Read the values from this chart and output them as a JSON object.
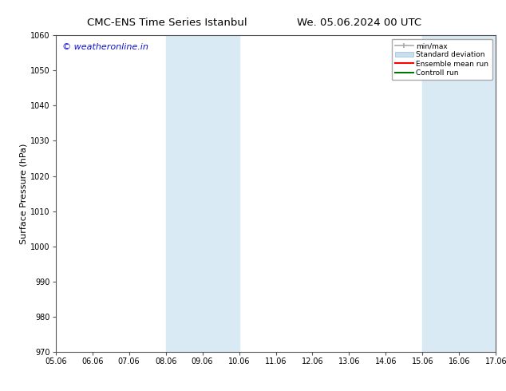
{
  "title_left": "CMC-ENS Time Series Istanbul",
  "title_right": "We. 05.06.2024 00 UTC",
  "ylabel": "Surface Pressure (hPa)",
  "ylim": [
    970,
    1060
  ],
  "yticks": [
    970,
    980,
    990,
    1000,
    1010,
    1020,
    1030,
    1040,
    1050,
    1060
  ],
  "x_tick_labels": [
    "05.06",
    "06.06",
    "07.06",
    "08.06",
    "09.06",
    "10.06",
    "11.06",
    "12.06",
    "13.06",
    "14.06",
    "15.06",
    "16.06",
    "17.06"
  ],
  "x_tick_positions": [
    0,
    1,
    2,
    3,
    4,
    5,
    6,
    7,
    8,
    9,
    10,
    11,
    12
  ],
  "shaded_bands": [
    {
      "x_start": 3,
      "x_end": 5,
      "color": "#daeaf5"
    },
    {
      "x_start": 10,
      "x_end": 12,
      "color": "#daeaf5"
    }
  ],
  "watermark_text": "© weatheronline.in",
  "watermark_color": "#1111cc",
  "watermark_fontsize": 8,
  "legend_labels": [
    "min/max",
    "Standard deviation",
    "Ensemble mean run",
    "Controll run"
  ],
  "legend_colors": [
    "#aaaaaa",
    "#c8dff0",
    "#ff0000",
    "#007700"
  ],
  "background_color": "#ffffff",
  "plot_bg_color": "#ffffff",
  "tick_fontsize": 7,
  "title_fontsize": 9.5,
  "ylabel_fontsize": 8
}
